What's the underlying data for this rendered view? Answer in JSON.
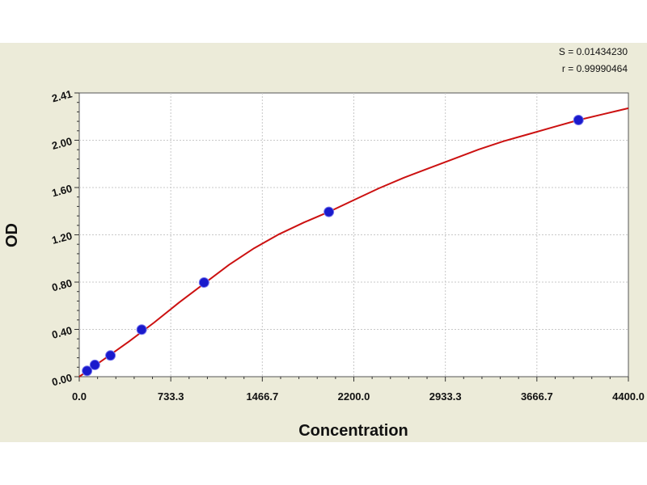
{
  "stats": {
    "s_label": "S = 0.01434230",
    "r_label": "r = 0.99990464"
  },
  "chart_data": {
    "type": "scatter",
    "title": "",
    "xlabel": "Concentration",
    "ylabel": "OD",
    "xlim": [
      0,
      4400
    ],
    "ylim": [
      0,
      2.41
    ],
    "x_ticks": [
      "0.0",
      "733.3",
      "1466.7",
      "2200.0",
      "2933.3",
      "3666.7",
      "4400.0"
    ],
    "y_ticks": [
      "0.00",
      "0.40",
      "0.80",
      "1.20",
      "1.60",
      "2.00",
      "2.41"
    ],
    "grid": true,
    "series": [
      {
        "points": [
          {
            "x": 62.5,
            "y": 0.05
          },
          {
            "x": 125,
            "y": 0.1
          },
          {
            "x": 250,
            "y": 0.18
          },
          {
            "x": 500,
            "y": 0.4
          },
          {
            "x": 1000,
            "y": 0.8
          },
          {
            "x": 2000,
            "y": 1.4
          },
          {
            "x": 4000,
            "y": 2.18
          }
        ]
      }
    ],
    "fit_curve": {
      "x": [
        0,
        200,
        400,
        600,
        800,
        1000,
        1200,
        1400,
        1600,
        1800,
        2000,
        2200,
        2400,
        2600,
        2800,
        3000,
        3200,
        3400,
        3600,
        3800,
        4000,
        4200,
        4400
      ],
      "y": [
        0.0,
        0.15,
        0.3,
        0.46,
        0.63,
        0.79,
        0.95,
        1.09,
        1.21,
        1.31,
        1.4,
        1.5,
        1.6,
        1.69,
        1.77,
        1.85,
        1.93,
        2.0,
        2.06,
        2.12,
        2.18,
        2.23,
        2.28
      ]
    },
    "colors": {
      "background": "#ecebd9",
      "plot_area": "#ffffff",
      "grid": "#c8c8c8",
      "curve": "#cc1111",
      "point_fill": "#1a1acc"
    }
  }
}
